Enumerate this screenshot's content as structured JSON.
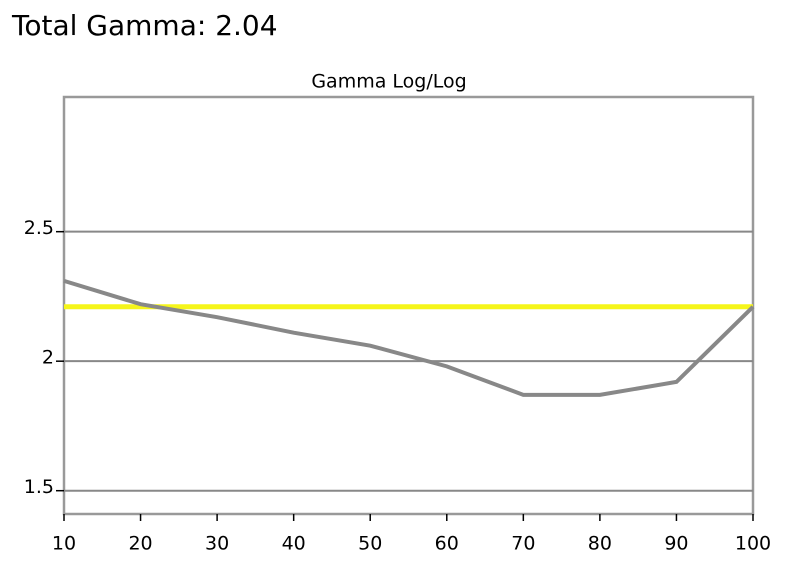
{
  "header": "Total Gamma: 2.04",
  "chart_data": {
    "type": "line",
    "title": "Gamma Log/Log",
    "x": [
      10,
      20,
      30,
      40,
      50,
      60,
      70,
      80,
      90,
      100
    ],
    "series": [
      {
        "color": "#f5f51a",
        "values": [
          2.21,
          2.21,
          2.21,
          2.21,
          2.21,
          2.21,
          2.21,
          2.21,
          2.21,
          2.21
        ]
      },
      {
        "color": "#888888",
        "values": [
          2.31,
          2.22,
          2.17,
          2.11,
          2.06,
          1.98,
          1.87,
          1.87,
          1.92,
          2.21
        ]
      }
    ],
    "xlim": [
      10,
      100
    ],
    "xticks": [
      10,
      20,
      30,
      40,
      50,
      60,
      70,
      80,
      90,
      100
    ],
    "ylim": [
      1.41,
      3.02
    ],
    "yticks": [
      1.5,
      2,
      2.5
    ],
    "grid": true
  }
}
